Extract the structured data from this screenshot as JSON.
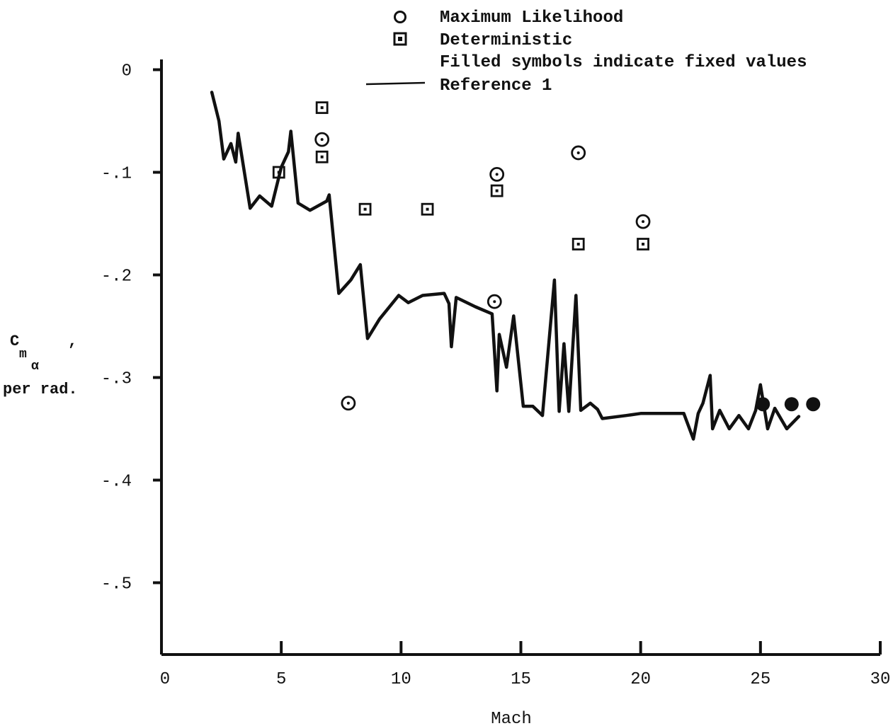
{
  "chart_data": {
    "type": "scatter",
    "title": "",
    "xlabel": "Mach",
    "ylabel_symbol": "C",
    "ylabel_subscript": "m",
    "ylabel_sub_subscript": "α",
    "ylabel_comma": ",",
    "ylabel_units": "per rad.",
    "xlim": [
      0,
      30
    ],
    "ylim": [
      -0.57,
      0.01
    ],
    "x_ticks": [
      0,
      5,
      10,
      15,
      20,
      25,
      30
    ],
    "x_tick_labels": [
      "0",
      "5",
      "10",
      "15",
      "20",
      "25",
      "30"
    ],
    "y_ticks": [
      0,
      -0.1,
      -0.2,
      -0.3,
      -0.4,
      -0.5
    ],
    "y_tick_labels": [
      "0",
      "-.1",
      "-.2",
      "-.3",
      "-.4",
      "-.5"
    ],
    "legend_position": "top-right",
    "legend": {
      "ml": "Maximum Likelihood",
      "det": "Deterministic",
      "note": "Filled symbols indicate fixed values",
      "ref": "Reference 1"
    },
    "series": [
      {
        "name": "Maximum Likelihood",
        "marker": "circle",
        "points": [
          [
            6.7,
            -0.068
          ],
          [
            7.8,
            -0.325
          ],
          [
            14.0,
            -0.102
          ],
          [
            13.9,
            -0.226
          ],
          [
            17.4,
            -0.081
          ],
          [
            20.1,
            -0.148
          ]
        ]
      },
      {
        "name": "Maximum Likelihood (fixed)",
        "marker": "filled-circle",
        "points": [
          [
            25.1,
            -0.326
          ],
          [
            26.3,
            -0.326
          ],
          [
            27.2,
            -0.326
          ]
        ]
      },
      {
        "name": "Deterministic",
        "marker": "square",
        "points": [
          [
            4.9,
            -0.1
          ],
          [
            6.7,
            -0.037
          ],
          [
            6.7,
            -0.085
          ],
          [
            8.5,
            -0.136
          ],
          [
            11.1,
            -0.136
          ],
          [
            14.0,
            -0.118
          ],
          [
            17.4,
            -0.17
          ],
          [
            20.1,
            -0.17
          ]
        ]
      },
      {
        "name": "Reference 1",
        "marker": "line",
        "points": [
          [
            2.1,
            -0.022
          ],
          [
            2.4,
            -0.05
          ],
          [
            2.6,
            -0.087
          ],
          [
            2.9,
            -0.072
          ],
          [
            3.1,
            -0.09
          ],
          [
            3.2,
            -0.062
          ],
          [
            3.7,
            -0.135
          ],
          [
            4.1,
            -0.123
          ],
          [
            4.6,
            -0.133
          ],
          [
            5.0,
            -0.095
          ],
          [
            5.3,
            -0.08
          ],
          [
            5.4,
            -0.06
          ],
          [
            5.7,
            -0.13
          ],
          [
            6.2,
            -0.137
          ],
          [
            6.9,
            -0.128
          ],
          [
            7.0,
            -0.122
          ],
          [
            7.4,
            -0.218
          ],
          [
            7.9,
            -0.205
          ],
          [
            8.3,
            -0.19
          ],
          [
            8.6,
            -0.262
          ],
          [
            9.1,
            -0.243
          ],
          [
            9.9,
            -0.22
          ],
          [
            10.3,
            -0.227
          ],
          [
            10.9,
            -0.22
          ],
          [
            11.8,
            -0.218
          ],
          [
            12.0,
            -0.228
          ],
          [
            12.1,
            -0.27
          ],
          [
            12.3,
            -0.222
          ],
          [
            13.1,
            -0.231
          ],
          [
            13.8,
            -0.238
          ],
          [
            14.0,
            -0.313
          ],
          [
            14.1,
            -0.258
          ],
          [
            14.4,
            -0.29
          ],
          [
            14.7,
            -0.24
          ],
          [
            15.1,
            -0.328
          ],
          [
            15.5,
            -0.328
          ],
          [
            15.9,
            -0.337
          ],
          [
            16.4,
            -0.205
          ],
          [
            16.6,
            -0.333
          ],
          [
            16.8,
            -0.267
          ],
          [
            17.0,
            -0.333
          ],
          [
            17.3,
            -0.22
          ],
          [
            17.5,
            -0.332
          ],
          [
            17.9,
            -0.325
          ],
          [
            18.2,
            -0.331
          ],
          [
            18.4,
            -0.34
          ],
          [
            19.4,
            -0.337
          ],
          [
            20.0,
            -0.335
          ],
          [
            21.8,
            -0.335
          ],
          [
            22.2,
            -0.36
          ],
          [
            22.4,
            -0.335
          ],
          [
            22.6,
            -0.325
          ],
          [
            22.9,
            -0.298
          ],
          [
            23.0,
            -0.35
          ],
          [
            23.3,
            -0.332
          ],
          [
            23.7,
            -0.35
          ],
          [
            24.1,
            -0.337
          ],
          [
            24.5,
            -0.35
          ],
          [
            24.8,
            -0.332
          ],
          [
            25.0,
            -0.307
          ],
          [
            25.3,
            -0.35
          ],
          [
            25.6,
            -0.33
          ],
          [
            26.1,
            -0.35
          ],
          [
            26.6,
            -0.338
          ]
        ]
      }
    ]
  }
}
